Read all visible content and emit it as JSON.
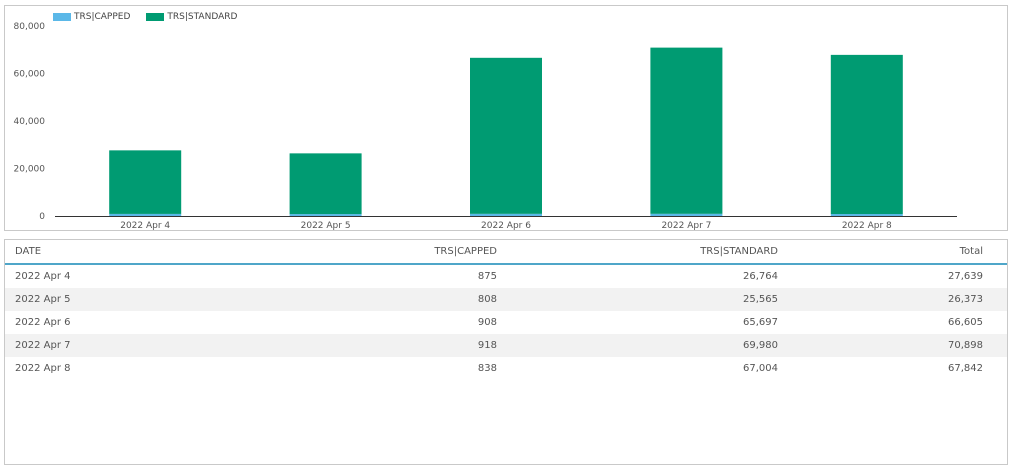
{
  "colors": {
    "capped": "#5bb8e8",
    "standard": "#009b72",
    "axis": "#333333",
    "header_rule": "#4fa6c9"
  },
  "chart_data": {
    "type": "bar",
    "stacked": true,
    "categories": [
      "2022 Apr 4",
      "2022 Apr 5",
      "2022 Apr 6",
      "2022 Apr 7",
      "2022 Apr 8"
    ],
    "series": [
      {
        "name": "TRS|CAPPED",
        "values": [
          875,
          808,
          908,
          918,
          838
        ]
      },
      {
        "name": "TRS|STANDARD",
        "values": [
          26764,
          25565,
          65697,
          69980,
          67004
        ]
      }
    ],
    "ylim": [
      0,
      80000
    ],
    "yticks": [
      0,
      20000,
      40000,
      60000,
      80000
    ],
    "ytick_labels": [
      "0",
      "20,000",
      "40,000",
      "60,000",
      "80,000"
    ],
    "legend_position": "top-left",
    "grid": false
  },
  "table": {
    "headers": [
      "DATE",
      "TRS|CAPPED",
      "TRS|STANDARD",
      "Total"
    ],
    "rows": [
      [
        "2022 Apr 4",
        "875",
        "26,764",
        "27,639"
      ],
      [
        "2022 Apr 5",
        "808",
        "25,565",
        "26,373"
      ],
      [
        "2022 Apr 6",
        "908",
        "65,697",
        "66,605"
      ],
      [
        "2022 Apr 7",
        "918",
        "69,980",
        "70,898"
      ],
      [
        "2022 Apr 8",
        "838",
        "67,004",
        "67,842"
      ]
    ]
  }
}
